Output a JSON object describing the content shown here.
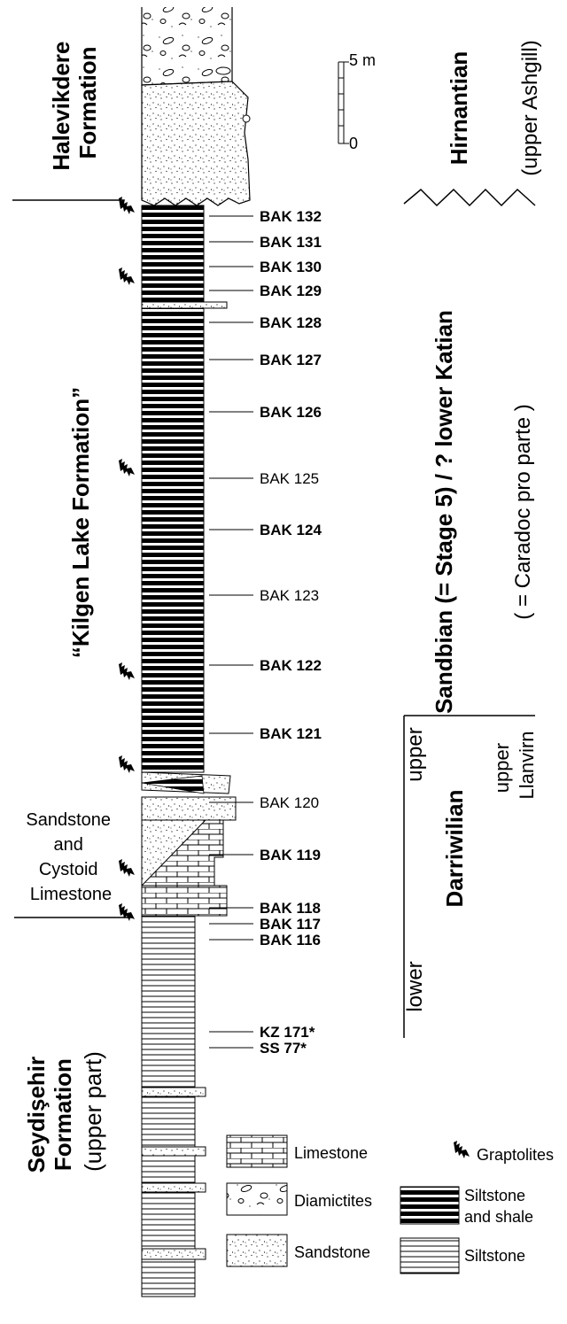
{
  "formations": {
    "halevikdere": [
      "Halevikdere",
      "Formation"
    ],
    "kilgen": "“Kilgen Lake Formation”",
    "sandstone_cystoid": [
      "Sandstone",
      "and",
      "Cystoid",
      "Limestone"
    ],
    "seydisehir": [
      "Seydişehir",
      "Formation",
      "(upper part)"
    ]
  },
  "stages": {
    "hirnantian": "Hirnantian",
    "upper_ashgill": "(upper Ashgill)",
    "sandbian_line": "Sandbian  (= Stage 5)   /   ? lower Katian",
    "caradoc_line": "( =  Caradoc      pro  parte )",
    "upper": "upper",
    "darriwilian": "Darriwilian",
    "lower": "lower",
    "upper_llanvirn": [
      "upper",
      "Llanvirn"
    ]
  },
  "scale": {
    "top_label": "5 m",
    "bottom_label": "0"
  },
  "samples": [
    {
      "label": "BAK 132",
      "bold": true
    },
    {
      "label": "BAK 131",
      "bold": true
    },
    {
      "label": "BAK 130",
      "bold": true
    },
    {
      "label": "BAK 129",
      "bold": true
    },
    {
      "label": "BAK 128",
      "bold": true
    },
    {
      "label": "BAK 127",
      "bold": true
    },
    {
      "label": "BAK 126",
      "bold": true
    },
    {
      "label": "BAK 125",
      "bold": false
    },
    {
      "label": "BAK 124",
      "bold": true
    },
    {
      "label": "BAK 123",
      "bold": false
    },
    {
      "label": "BAK 122",
      "bold": true
    },
    {
      "label": "BAK 121",
      "bold": true
    },
    {
      "label": "BAK 120",
      "bold": false
    },
    {
      "label": "BAK 119",
      "bold": true
    },
    {
      "label": "BAK 118",
      "bold": true
    },
    {
      "label": "BAK 117",
      "bold": true
    },
    {
      "label": "BAK 116",
      "bold": true
    },
    {
      "label": "KZ 171*",
      "bold": true
    },
    {
      "label": "SS 77*",
      "bold": true
    }
  ],
  "legend": {
    "limestone": "Limestone",
    "diamictites": "Diamictites",
    "sandstone": "Sandstone",
    "graptolites": "Graptolites",
    "siltstone_shale": [
      "Siltstone",
      "and shale"
    ],
    "siltstone": "Siltstone"
  },
  "icons": {
    "graptolite": "graptolite-icon"
  }
}
